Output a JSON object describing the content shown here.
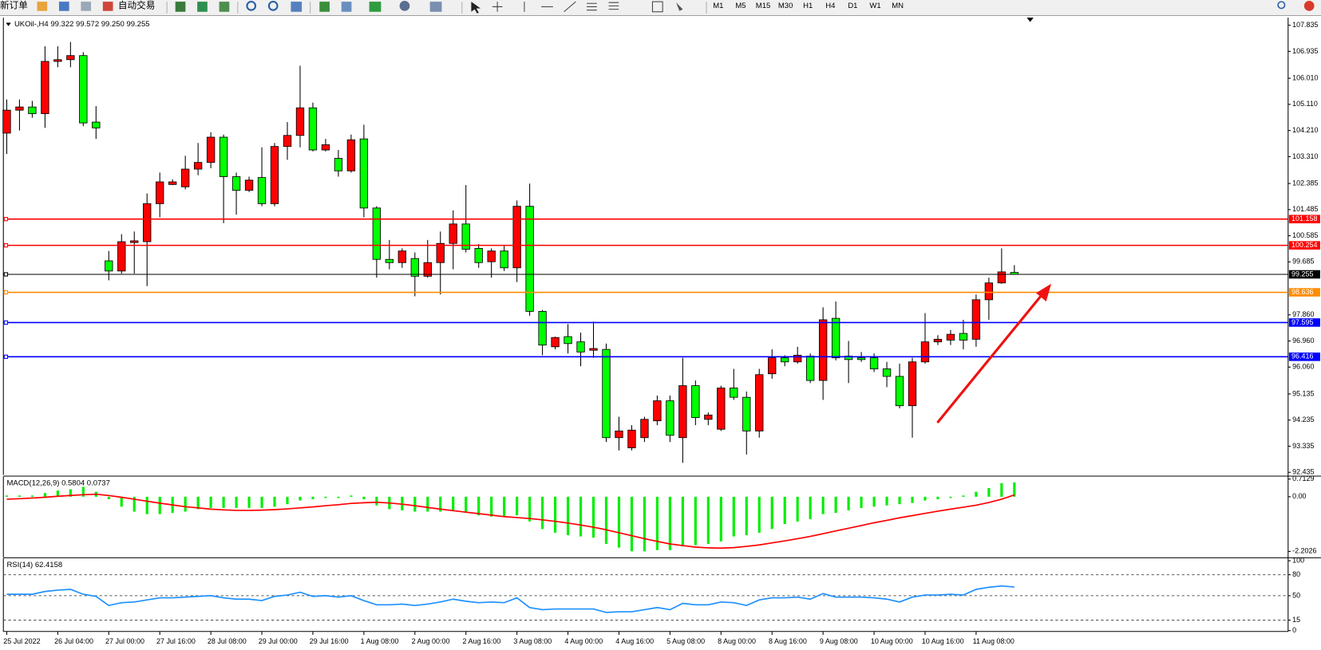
{
  "toolbar": {
    "items": [
      "新订单",
      "自动交易"
    ],
    "timeframes": [
      "M1",
      "M5",
      "M15",
      "M30",
      "H1",
      "H4",
      "D1",
      "W1",
      "MN"
    ]
  },
  "chart_data": [
    {
      "type": "candlestick",
      "title": "UKOil-,H4  99.322 99.572 99.250 99.255",
      "up_color": "#ff0000",
      "down_color": "#00ff00",
      "categories": [
        "25 Jul 2022",
        null,
        null,
        null,
        "26 Jul 04:00",
        null,
        null,
        null,
        "27 Jul 00:00",
        null,
        null,
        null,
        "27 Jul 16:00",
        null,
        null,
        null,
        "28 Jul 08:00",
        null,
        null,
        null,
        "29 Jul 00:00",
        null,
        null,
        null,
        "29 Jul 16:00",
        null,
        null,
        null,
        "1 Aug 08:00",
        null,
        null,
        null,
        "2 Aug 00:00",
        null,
        null,
        null,
        "2 Aug 16:00",
        null,
        null,
        null,
        "3 Aug 08:00",
        null,
        null,
        null,
        "4 Aug 00:00",
        null,
        null,
        null,
        "4 Aug 16:00",
        null,
        null,
        null,
        "5 Aug 08:00",
        null,
        null,
        null,
        "8 Aug 00:00",
        null,
        null,
        null,
        "8 Aug 16:00",
        null,
        null,
        null,
        "9 Aug 08:00",
        null,
        null,
        null,
        "10 Aug 00:00",
        null,
        null,
        null,
        "10 Aug 16:00",
        null,
        null,
        null,
        "11 Aug 08:00",
        null,
        null,
        null
      ],
      "open": [
        104.12,
        104.91,
        105.02,
        104.79,
        106.59,
        106.65,
        106.79,
        104.5,
        99.72,
        99.37,
        100.35,
        100.38,
        101.69,
        102.35,
        102.27,
        102.88,
        103.11,
        103.98,
        102.62,
        102.15,
        102.59,
        101.69,
        103.66,
        104.04,
        104.99,
        103.54,
        103.25,
        102.82,
        103.92,
        101.54,
        99.77,
        99.66,
        99.8,
        99.19,
        99.66,
        100.32,
        100.99,
        100.15,
        99.69,
        100.06,
        99.48,
        101.6,
        97.98,
        96.76,
        97.11,
        96.93,
        96.64,
        96.67,
        93.63,
        93.28,
        93.63,
        94.21,
        94.9,
        93.63,
        95.42,
        94.26,
        93.92,
        95.34,
        95.02,
        93.86,
        95.83,
        96.38,
        96.24,
        96.44,
        95.6,
        97.74,
        96.44,
        96.38,
        96.38,
        96.0,
        95.74,
        94.73,
        96.24,
        96.93,
        96.99,
        97.22,
        97.02,
        98.38,
        98.96,
        99.322
      ],
      "high": [
        105.28,
        105.28,
        105.23,
        107.11,
        107.11,
        107.26,
        106.91,
        105.05,
        100.06,
        100.64,
        100.73,
        102.04,
        102.76,
        102.53,
        103.34,
        103.78,
        104.15,
        104.07,
        102.76,
        102.62,
        103.63,
        103.78,
        104.5,
        106.44,
        105.17,
        103.92,
        103.54,
        104.07,
        104.41,
        101.6,
        100.44,
        100.15,
        100.01,
        100.44,
        100.73,
        101.46,
        102.33,
        100.3,
        100.15,
        100.24,
        101.8,
        102.38,
        98.03,
        97.11,
        97.54,
        97.25,
        97.63,
        96.87,
        94.35,
        94.06,
        94.35,
        95.08,
        95.08,
        96.38,
        95.6,
        94.5,
        95.42,
        96.0,
        95.22,
        96.0,
        96.67,
        96.47,
        96.76,
        96.53,
        98.12,
        98.32,
        96.96,
        96.58,
        96.53,
        96.24,
        96.18,
        96.38,
        97.92,
        97.16,
        97.34,
        97.69,
        98.56,
        99.14,
        100.15,
        99.572
      ],
      "low": [
        103.4,
        104.21,
        104.65,
        104.3,
        106.39,
        106.39,
        104.36,
        103.92,
        99.05,
        99.28,
        99.28,
        98.85,
        101.22,
        102.33,
        102.18,
        102.67,
        102.91,
        101.02,
        101.31,
        102.09,
        101.6,
        101.6,
        103.2,
        103.63,
        103.49,
        103.49,
        102.62,
        102.76,
        101.22,
        99.14,
        99.43,
        99.48,
        98.5,
        99.14,
        98.56,
        99.43,
        100.01,
        99.48,
        99.14,
        99.37,
        98.99,
        97.83,
        96.47,
        96.67,
        96.53,
        96.09,
        96.38,
        93.48,
        93.19,
        93.19,
        93.48,
        94.06,
        93.48,
        92.76,
        94.06,
        94.06,
        93.86,
        94.93,
        93.05,
        93.63,
        95.66,
        96.09,
        96.18,
        95.51,
        94.93,
        96.29,
        95.51,
        96.24,
        95.89,
        95.37,
        94.64,
        93.63,
        96.18,
        96.82,
        96.82,
        96.67,
        96.76,
        97.69,
        98.93,
        99.25
      ],
      "close": [
        104.91,
        105.02,
        104.79,
        106.59,
        106.65,
        106.79,
        104.47,
        104.3,
        99.37,
        100.38,
        100.41,
        101.69,
        102.44,
        102.44,
        102.88,
        103.11,
        103.98,
        102.62,
        102.15,
        102.5,
        101.69,
        103.66,
        104.04,
        104.99,
        103.54,
        103.72,
        102.82,
        103.89,
        101.54,
        99.77,
        99.66,
        100.06,
        99.19,
        99.66,
        100.32,
        100.99,
        100.12,
        99.66,
        100.06,
        99.48,
        101.6,
        97.98,
        96.82,
        97.08,
        96.87,
        96.58,
        96.7,
        93.63,
        93.86,
        93.89,
        94.26,
        94.9,
        93.71,
        95.42,
        94.32,
        94.41,
        95.34,
        95.02,
        93.86,
        95.8,
        96.38,
        96.24,
        96.47,
        95.6,
        97.69,
        96.38,
        96.32,
        96.32,
        96.0,
        95.74,
        94.73,
        96.24,
        96.93,
        97.02,
        97.19,
        96.99,
        98.38,
        98.96,
        99.34,
        99.255
      ],
      "hlines": [
        {
          "value": 101.158,
          "color": "#ff0000"
        },
        {
          "value": 100.254,
          "color": "#ff0000"
        },
        {
          "value": 99.255,
          "color": "#000000"
        },
        {
          "value": 98.636,
          "color": "#ff8c00"
        },
        {
          "value": 97.595,
          "color": "#0000ff"
        },
        {
          "value": 96.416,
          "color": "#0000ff"
        }
      ],
      "ylim": [
        92.435,
        107.835
      ],
      "yticks": [
        107.835,
        106.935,
        {
          "value": 106.01,
          "label": "106.010"
        },
        {
          "value": 105.11,
          "label": "105.110"
        },
        {
          "value": 104.21,
          "label": "104.210"
        },
        {
          "value": 103.31,
          "label": "103.310"
        },
        102.385,
        101.485,
        100.585,
        99.685,
        {
          "value": 97.86,
          "label": "97.860"
        },
        {
          "value": 96.96,
          "label": "96.960"
        },
        {
          "value": 96.06,
          "label": "96.060"
        },
        95.135,
        94.235,
        93.335,
        92.435
      ]
    },
    {
      "type": "macd",
      "title": "MACD(12,26,9) 0.5804 0.0737",
      "series": [
        {
          "style": "bar",
          "color": "#00ee00",
          "values": [
            0.05,
            0.05,
            0.05,
            0.15,
            0.25,
            0.3,
            0.4,
            0.2,
            -0.1,
            -0.4,
            -0.6,
            -0.7,
            -0.7,
            -0.65,
            -0.6,
            -0.5,
            -0.45,
            -0.45,
            -0.45,
            -0.45,
            -0.45,
            -0.4,
            -0.3,
            -0.15,
            -0.1,
            -0.05,
            -0.05,
            0.05,
            -0.1,
            -0.35,
            -0.5,
            -0.55,
            -0.6,
            -0.6,
            -0.6,
            -0.55,
            -0.65,
            -0.75,
            -0.8,
            -0.8,
            -0.75,
            -1.0,
            -1.3,
            -1.45,
            -1.55,
            -1.6,
            -1.65,
            -1.9,
            -2.05,
            -2.2,
            -2.2,
            -2.15,
            -2.15,
            -2.0,
            -1.95,
            -1.9,
            -1.8,
            -1.6,
            -1.55,
            -1.45,
            -1.3,
            -1.1,
            -1.0,
            -0.9,
            -0.7,
            -0.65,
            -0.55,
            -0.45,
            -0.4,
            -0.35,
            -0.3,
            -0.25,
            -0.15,
            -0.1,
            -0.05,
            0.05,
            0.2,
            0.35,
            0.55,
            0.5804
          ]
        },
        {
          "style": "line",
          "color": "#ff0000",
          "values": [
            -0.1,
            -0.08,
            -0.05,
            -0.02,
            0.02,
            0.05,
            0.08,
            0.1,
            0.05,
            -0.02,
            -0.1,
            -0.18,
            -0.26,
            -0.33,
            -0.4,
            -0.45,
            -0.5,
            -0.53,
            -0.55,
            -0.55,
            -0.54,
            -0.52,
            -0.49,
            -0.45,
            -0.41,
            -0.36,
            -0.32,
            -0.27,
            -0.24,
            -0.22,
            -0.25,
            -0.3,
            -0.36,
            -0.43,
            -0.5,
            -0.56,
            -0.62,
            -0.68,
            -0.74,
            -0.8,
            -0.84,
            -0.88,
            -0.93,
            -0.99,
            -1.06,
            -1.14,
            -1.23,
            -1.33,
            -1.45,
            -1.57,
            -1.69,
            -1.8,
            -1.9,
            -1.97,
            -2.03,
            -2.06,
            -2.07,
            -2.05,
            -2.0,
            -1.94,
            -1.86,
            -1.78,
            -1.69,
            -1.6,
            -1.49,
            -1.38,
            -1.27,
            -1.16,
            -1.05,
            -0.95,
            -0.85,
            -0.76,
            -0.67,
            -0.58,
            -0.5,
            -0.42,
            -0.34,
            -0.23,
            -0.1,
            0.0737
          ]
        }
      ],
      "ylim": [
        -2.41,
        0.78
      ],
      "yticks": [
        0.7129,
        {
          "value": 0,
          "label": "0.00"
        },
        -2.2026
      ]
    },
    {
      "type": "line",
      "title": "RSI(14) 62.4158",
      "level_lines": true,
      "series": [
        {
          "color": "#1e90ff",
          "values": [
            52,
            52,
            52,
            56,
            58,
            59,
            52,
            49,
            36,
            40,
            41,
            44,
            47,
            47,
            48,
            49,
            50,
            47,
            45,
            45,
            43,
            49,
            51,
            55,
            49,
            50,
            48,
            50,
            43,
            37,
            37,
            38,
            36,
            38,
            41,
            45,
            42,
            40,
            41,
            40,
            47,
            33,
            30,
            31,
            31,
            31,
            31,
            26,
            27,
            27,
            30,
            33,
            30,
            39,
            37,
            37,
            41,
            40,
            36,
            44,
            47,
            47,
            48,
            45,
            53,
            48,
            48,
            48,
            47,
            45,
            41,
            48,
            51,
            51,
            52,
            51,
            59,
            62,
            64,
            62.4158
          ]
        }
      ],
      "ylim": [
        0,
        100
      ],
      "yticks": [
        100,
        80,
        50,
        15,
        0
      ]
    }
  ]
}
